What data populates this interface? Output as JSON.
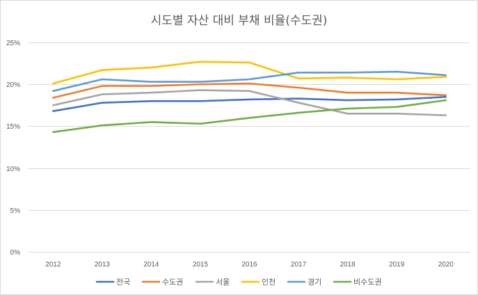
{
  "chart_data": {
    "type": "line",
    "title": "시도별 자산 대비 부채 비율(수도권)",
    "xlabel": "",
    "ylabel": "",
    "x": [
      "2012",
      "2013",
      "2014",
      "2015",
      "2016",
      "2017",
      "2018",
      "2019",
      "2020"
    ],
    "ylim": [
      0,
      25
    ],
    "yticks": [
      0,
      5,
      10,
      15,
      20,
      25
    ],
    "ytick_labels": [
      "0%",
      "5%",
      "10%",
      "15%",
      "20%",
      "25%"
    ],
    "grid": true,
    "legend_position": "bottom",
    "series": [
      {
        "name": "전국",
        "color": "#4472c4",
        "values": [
          16.8,
          17.8,
          18.0,
          18.0,
          18.2,
          18.3,
          18.1,
          18.2,
          18.5
        ]
      },
      {
        "name": "수도권",
        "color": "#ed7d31",
        "values": [
          18.4,
          19.8,
          19.8,
          20.0,
          20.1,
          19.6,
          19.0,
          19.0,
          18.7
        ]
      },
      {
        "name": "서울",
        "color": "#a5a5a5",
        "values": [
          17.5,
          18.8,
          19.0,
          19.3,
          19.2,
          17.8,
          16.5,
          16.5,
          16.3
        ]
      },
      {
        "name": "인천",
        "color": "#ffc000",
        "values": [
          20.1,
          21.7,
          22.0,
          22.7,
          22.6,
          20.7,
          20.8,
          20.6,
          20.9
        ]
      },
      {
        "name": "경기",
        "color": "#5b9bd5",
        "values": [
          19.2,
          20.6,
          20.3,
          20.3,
          20.6,
          21.4,
          21.4,
          21.5,
          21.1
        ]
      },
      {
        "name": "비수도권",
        "color": "#70ad47",
        "values": [
          14.3,
          15.1,
          15.5,
          15.3,
          16.0,
          16.6,
          17.1,
          17.3,
          18.1
        ]
      }
    ]
  }
}
